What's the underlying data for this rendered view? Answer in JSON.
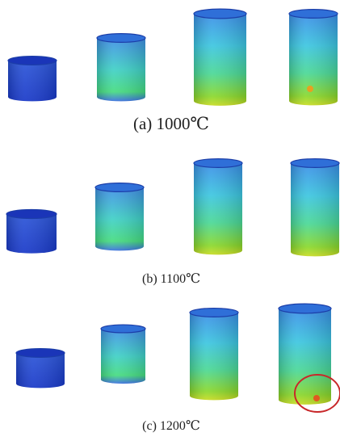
{
  "panels": [
    {
      "caption": "(a) 1000℃"
    },
    {
      "caption": "(b) 1100℃"
    },
    {
      "caption": "(c) 1200℃"
    }
  ]
}
